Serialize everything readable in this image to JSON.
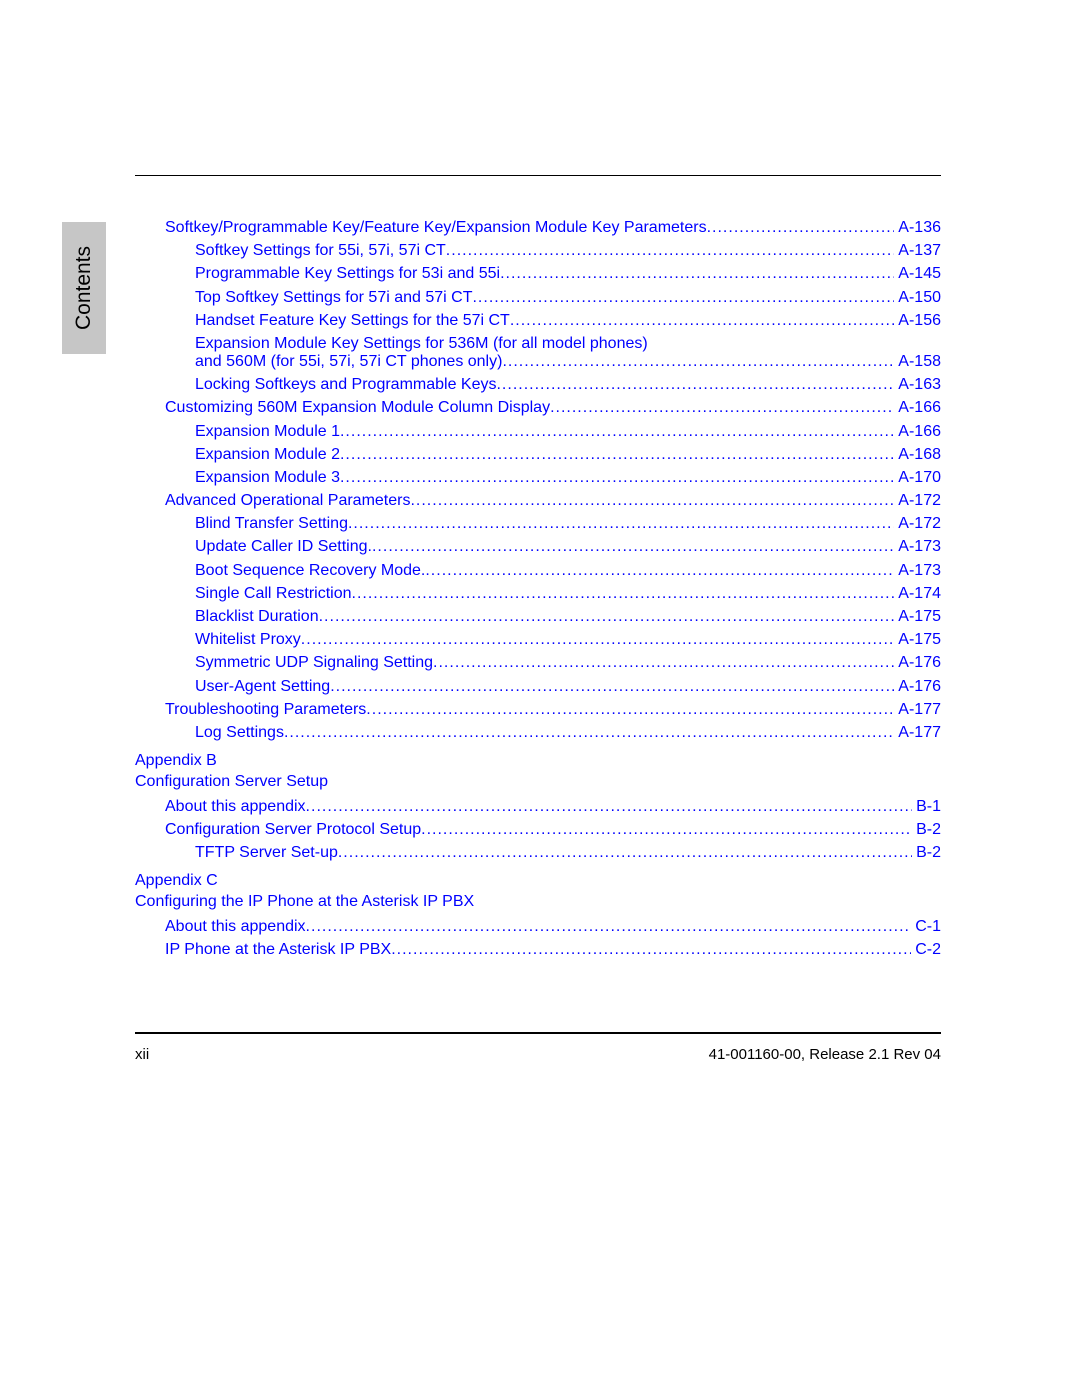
{
  "sideTab": "Contents",
  "entries": [
    {
      "type": "entry",
      "indent": 0,
      "label": "Softkey/Programmable Key/Feature Key/Expansion Module Key Parameters",
      "page": "A-136"
    },
    {
      "type": "entry",
      "indent": 1,
      "label": "Softkey Settings for 55i, 57i, 57i CT",
      "page": "A-137"
    },
    {
      "type": "entry",
      "indent": 1,
      "label": "Programmable Key Settings for 53i and 55i",
      "page": "A-145"
    },
    {
      "type": "entry",
      "indent": 1,
      "label": "Top Softkey Settings for 57i and 57i CT",
      "page": "A-150"
    },
    {
      "type": "entry",
      "indent": 1,
      "label": "Handset Feature Key Settings for the 57i CT",
      "page": "A-156"
    },
    {
      "type": "entry2",
      "indent": 1,
      "label1": "Expansion Module Key Settings for 536M (for all model phones)",
      "label2": "and 560M (for 55i, 57i, 57i CT phones only)",
      "page": "A-158"
    },
    {
      "type": "entry",
      "indent": 1,
      "label": "Locking Softkeys and Programmable Keys",
      "page": "A-163"
    },
    {
      "type": "entry",
      "indent": 0,
      "label": "Customizing 560M Expansion Module Column Display",
      "page": "A-166"
    },
    {
      "type": "entry",
      "indent": 1,
      "label": "Expansion Module 1",
      "page": "A-166"
    },
    {
      "type": "entry",
      "indent": 1,
      "label": "Expansion Module 2",
      "page": "A-168"
    },
    {
      "type": "entry",
      "indent": 1,
      "label": "Expansion Module 3",
      "page": "A-170"
    },
    {
      "type": "entry",
      "indent": 0,
      "label": "Advanced Operational Parameters",
      "page": "A-172"
    },
    {
      "type": "entry",
      "indent": 1,
      "label": "Blind Transfer Setting",
      "page": "A-172"
    },
    {
      "type": "entry",
      "indent": 1,
      "label": "Update Caller ID Setting.",
      "page": "A-173"
    },
    {
      "type": "entry",
      "indent": 1,
      "label": "Boot Sequence Recovery Mode.",
      "page": "A-173"
    },
    {
      "type": "entry",
      "indent": 1,
      "label": "Single Call Restriction",
      "page": "A-174"
    },
    {
      "type": "entry",
      "indent": 1,
      "label": "Blacklist Duration",
      "page": "A-175"
    },
    {
      "type": "entry",
      "indent": 1,
      "label": "Whitelist Proxy",
      "page": "A-175"
    },
    {
      "type": "entry",
      "indent": 1,
      "label": "Symmetric UDP Signaling Setting",
      "page": "A-176"
    },
    {
      "type": "entry",
      "indent": 1,
      "label": "User-Agent Setting",
      "page": "A-176"
    },
    {
      "type": "entry",
      "indent": 0,
      "label": "Troubleshooting Parameters",
      "page": "A-177"
    },
    {
      "type": "entry",
      "indent": 1,
      "label": "Log Settings",
      "page": "A-177"
    },
    {
      "type": "heading",
      "line1": "Appendix B",
      "line2": "Configuration Server Setup"
    },
    {
      "type": "entry",
      "indent": 0,
      "label": "About this appendix",
      "page": "B-1"
    },
    {
      "type": "entry",
      "indent": 0,
      "label": "Configuration Server Protocol Setup",
      "page": "B-2"
    },
    {
      "type": "entry",
      "indent": 1,
      "label": "TFTP Server Set-up",
      "page": "B-2"
    },
    {
      "type": "heading",
      "line1": "Appendix C",
      "line2": "Configuring the IP Phone at the Asterisk IP PBX"
    },
    {
      "type": "entry",
      "indent": 0,
      "label": "About this appendix",
      "page": "C-1"
    },
    {
      "type": "entry",
      "indent": 0,
      "label": "IP Phone at the Asterisk IP PBX",
      "page": "C-2"
    }
  ],
  "footer": {
    "left": "xii",
    "right": "41-001160-00, Release 2.1 Rev 04"
  },
  "colors": {
    "link": "#0000ff",
    "sideTabBg": "#c6c6c6",
    "text": "#000000",
    "background": "#ffffff"
  },
  "typography": {
    "body_fontsize": 16,
    "sidetab_fontsize": 21,
    "footer_fontsize": 15
  }
}
